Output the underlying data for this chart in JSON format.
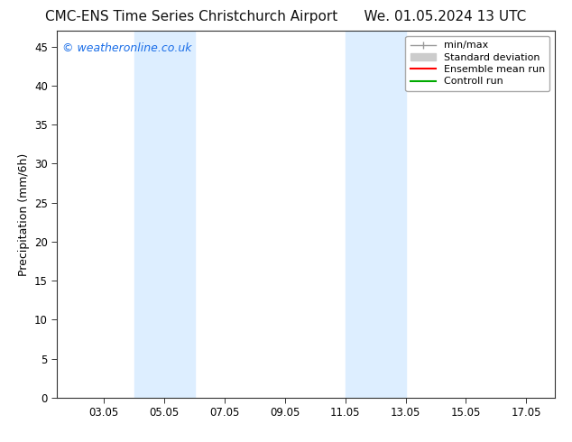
{
  "title_left": "CMC-ENS Time Series Christchurch Airport",
  "title_right": "We. 01.05.2024 13 UTC",
  "ylabel": "Precipitation (mm/6h)",
  "background_color": "#ffffff",
  "plot_bg_color": "#ffffff",
  "x_min": 1.5,
  "x_max": 18.0,
  "y_min": 0,
  "y_max": 47,
  "x_ticks": [
    3.05,
    5.05,
    7.05,
    9.05,
    11.05,
    13.05,
    15.05,
    17.05
  ],
  "x_tick_labels": [
    "03.05",
    "05.05",
    "07.05",
    "09.05",
    "11.05",
    "13.05",
    "15.05",
    "17.05"
  ],
  "y_ticks": [
    0,
    5,
    10,
    15,
    20,
    25,
    30,
    35,
    40,
    45
  ],
  "shaded_regions": [
    {
      "x_start": 4.05,
      "x_end": 5.55,
      "color": "#ddeeff"
    },
    {
      "x_start": 5.55,
      "x_end": 6.05,
      "color": "#ddeeff"
    },
    {
      "x_start": 11.05,
      "x_end": 12.05,
      "color": "#ddeeff"
    },
    {
      "x_start": 12.05,
      "x_end": 13.05,
      "color": "#ddeeff"
    }
  ],
  "watermark_text": "© weatheronline.co.uk",
  "watermark_color": "#1a6ee8",
  "legend_items": [
    {
      "label": "min/max",
      "color": "#999999",
      "lw": 1.0,
      "ls": "-",
      "type": "minmax"
    },
    {
      "label": "Standard deviation",
      "color": "#cccccc",
      "lw": 8,
      "ls": "-",
      "type": "rect"
    },
    {
      "label": "Ensemble mean run",
      "color": "#ff0000",
      "lw": 1.5,
      "ls": "-",
      "type": "line"
    },
    {
      "label": "Controll run",
      "color": "#00aa00",
      "lw": 1.5,
      "ls": "-",
      "type": "line"
    }
  ],
  "title_fontsize": 11,
  "axis_label_fontsize": 9,
  "tick_fontsize": 8.5,
  "legend_fontsize": 8,
  "watermark_fontsize": 9
}
